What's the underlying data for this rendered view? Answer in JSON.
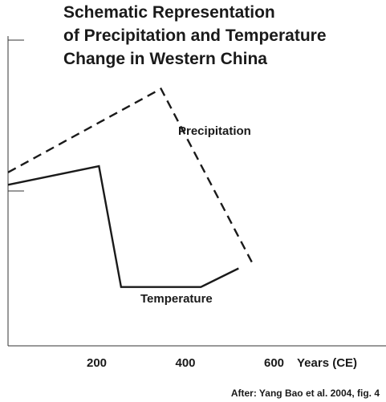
{
  "chart_data": {
    "type": "line",
    "title_lines": [
      "Schematic Representation",
      "of Precipitation and Temperature",
      "Change in Western China"
    ],
    "xlabel": "Years (CE)",
    "ylabel": "",
    "x_ticks": [
      200,
      400,
      600
    ],
    "xlim": [
      0,
      800
    ],
    "ylim": [
      0,
      10
    ],
    "grid": false,
    "source": "After: Yang Bao et al. 2004, fig. 4",
    "series": [
      {
        "name": "Precipitation",
        "style": "dashed",
        "color": "#1a1a1a",
        "x": [
          0,
          345,
          550
        ],
        "y": [
          5.6,
          8.3,
          2.7
        ]
      },
      {
        "name": "Temperature",
        "style": "solid",
        "color": "#1a1a1a",
        "x": [
          0,
          205,
          255,
          435,
          520
        ],
        "y": [
          5.2,
          5.8,
          1.9,
          1.9,
          2.5
        ]
      }
    ]
  }
}
